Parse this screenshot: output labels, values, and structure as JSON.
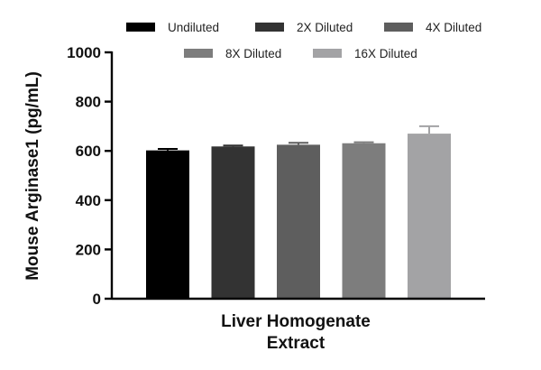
{
  "chart_data": {
    "type": "bar",
    "categories": [
      "Liver Homogenate Extract"
    ],
    "xlabel_lines": [
      "Liver Homogenate",
      "Extract"
    ],
    "ylabel": "Mouse Arginase1 (pg/mL)",
    "ylim": [
      0,
      1000
    ],
    "yticks": [
      "0",
      "200",
      "400",
      "600",
      "800",
      "1000"
    ],
    "legend_position": "top",
    "grid": false,
    "series": [
      {
        "name": "Undiluted",
        "value": 602,
        "error": 6,
        "color": "#000000"
      },
      {
        "name": "2X Diluted",
        "value": 618,
        "error": 4,
        "color": "#333333"
      },
      {
        "name": "4X Diluted",
        "value": 625,
        "error": 8,
        "color": "#5e5e5e"
      },
      {
        "name": "8X Diluted",
        "value": 631,
        "error": 4,
        "color": "#7d7d7d"
      },
      {
        "name": "16X Diluted",
        "value": 670,
        "error": 30,
        "color": "#a3a3a5"
      }
    ]
  }
}
